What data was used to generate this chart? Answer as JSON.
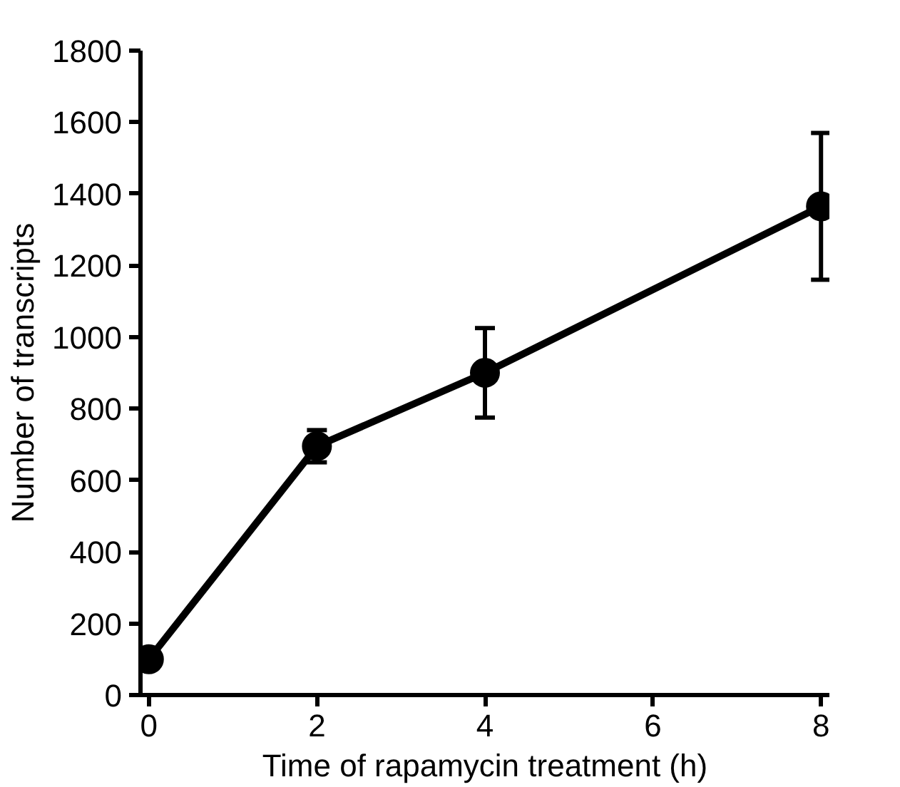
{
  "chart_data": {
    "type": "line",
    "xlabel": "Time of rapamycin treatment (h)",
    "ylabel": "Number of transcripts",
    "x": [
      0,
      2,
      4,
      8
    ],
    "series": [
      {
        "color": "#000000",
        "values": [
          100,
          695,
          900,
          1365
        ],
        "errors": [
          null,
          45,
          125,
          205
        ]
      }
    ],
    "xlim": [
      -0.1,
      8.1
    ],
    "xticks": [
      0,
      2,
      4,
      6,
      8
    ],
    "ylim": [
      0,
      1800
    ],
    "yticks": [
      0,
      200,
      400,
      600,
      800,
      1000,
      1200,
      1400,
      1600,
      1800
    ],
    "grid": false,
    "marker": "circle",
    "line_style": "solid"
  }
}
